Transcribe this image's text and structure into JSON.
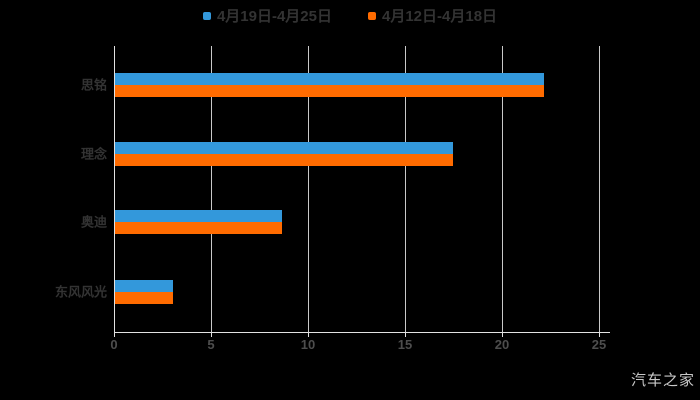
{
  "legend": {
    "items": [
      {
        "label": "4月19日-4月25日",
        "color": "#3398DB"
      },
      {
        "label": "4月12日-4月18日",
        "color": "#FF6B00"
      }
    ]
  },
  "chart_data": {
    "type": "bar",
    "orientation": "horizontal",
    "title": "",
    "xlabel": "",
    "ylabel": "",
    "categories": [
      "思铭",
      "理念",
      "奥迪",
      "东风风光"
    ],
    "series": [
      {
        "name": "4月19日-4月25日",
        "color": "#3398DB",
        "values": [
          22.1,
          17.4,
          8.6,
          3.0
        ]
      },
      {
        "name": "4月12日-4月18日",
        "color": "#FF6B00",
        "values": [
          22.1,
          17.4,
          8.6,
          3.0
        ]
      }
    ],
    "x_ticks": [
      0,
      5,
      10,
      15,
      20,
      25
    ],
    "xlim": [
      0,
      25
    ],
    "grid": true,
    "legend_position": "top"
  },
  "colors": {
    "background": "#000000",
    "gridline": "#C9C9C9",
    "axis_line": "#E2E2E2",
    "legend_text": "#333333",
    "category_text": "#333333",
    "tick_text": "#4D4D4D",
    "watermark_text": "#C8C8C8"
  },
  "watermark": {
    "text": "汽车之家"
  }
}
